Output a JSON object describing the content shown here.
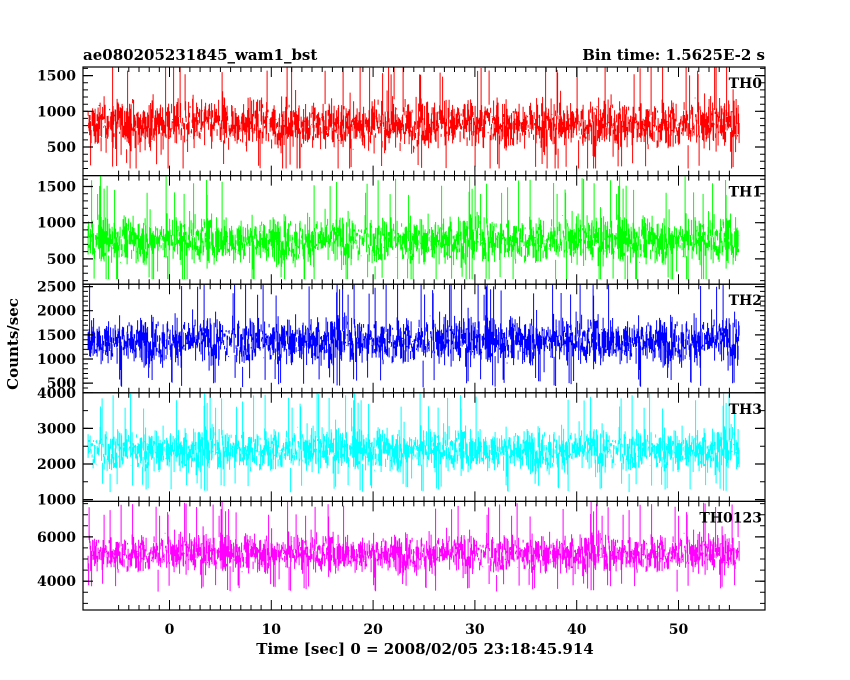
{
  "chart_data": {
    "type": "line",
    "title_left": "ae080205231845_wam1_bst",
    "title_right": "Bin time: 1.5625E-2 s",
    "xlabel": "Time [sec] 0 = 2008/02/05 23:18:45.914",
    "ylabel": "Counts/sec",
    "xlim": [
      -8.5,
      58.5
    ],
    "data_x_range": [
      -8,
      56
    ],
    "x_ticks": [
      0,
      10,
      20,
      30,
      40,
      50
    ],
    "x_tick_labels": [
      "0",
      "10",
      "20",
      "30",
      "40",
      "50"
    ],
    "grid": false,
    "legend": "none",
    "panels": [
      {
        "name": "TH0",
        "color": "#ff0000",
        "ylim": [
          100,
          1620
        ],
        "y_ticks": [
          500,
          1000,
          1500
        ],
        "y_tick_labels": [
          "500",
          "1000",
          "1500"
        ],
        "mean": 820,
        "spread": 300,
        "min": 200,
        "max": 1620
      },
      {
        "name": "TH1",
        "color": "#00ff00",
        "ylim": [
          150,
          1650
        ],
        "y_ticks": [
          500,
          1000,
          1500
        ],
        "y_tick_labels": [
          "500",
          "1000",
          "1500"
        ],
        "mean": 760,
        "spread": 280,
        "min": 220,
        "max": 1650
      },
      {
        "name": "TH2",
        "color": "#0000ff",
        "ylim": [
          300,
          2550
        ],
        "y_ticks": [
          500,
          1000,
          1500,
          2000,
          2500
        ],
        "y_tick_labels": [
          "500",
          "1000",
          "1500",
          "2000",
          "2500"
        ],
        "mean": 1380,
        "spread": 420,
        "min": 350,
        "max": 2550
      },
      {
        "name": "TH3",
        "color": "#00ffff",
        "ylim": [
          950,
          4000
        ],
        "y_ticks": [
          1000,
          2000,
          3000,
          4000
        ],
        "y_tick_labels": [
          "1000",
          "2000",
          "3000",
          "4000"
        ],
        "mean": 2400,
        "spread": 520,
        "min": 1050,
        "max": 4000
      },
      {
        "name": "TH0123",
        "color": "#ff00ff",
        "ylim": [
          2700,
          7600
        ],
        "y_ticks": [
          4000,
          6000
        ],
        "y_tick_labels": [
          "4000",
          "6000"
        ],
        "mean": 5250,
        "spread": 750,
        "min": 2750,
        "max": 7600
      }
    ]
  }
}
